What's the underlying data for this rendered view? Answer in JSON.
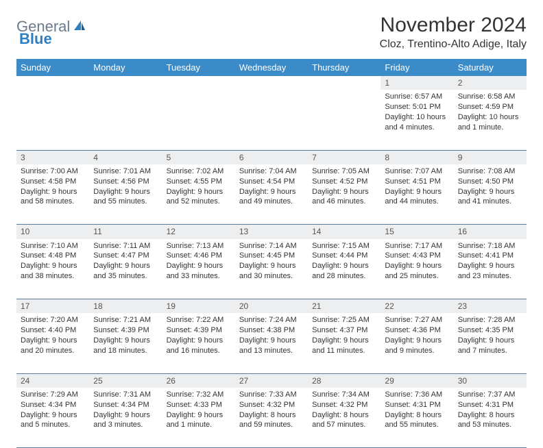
{
  "logo": {
    "general": "General",
    "blue": "Blue"
  },
  "title": "November 2024",
  "location": "Cloz, Trentino-Alto Adige, Italy",
  "colors": {
    "header_bg": "#3b8bc9",
    "header_text": "#ffffff",
    "daynum_bg": "#eceeef",
    "border": "#5a7ba0",
    "logo_general": "#6b7b8c",
    "logo_blue": "#2d7fc4"
  },
  "weekdays": [
    "Sunday",
    "Monday",
    "Tuesday",
    "Wednesday",
    "Thursday",
    "Friday",
    "Saturday"
  ],
  "weeks": [
    [
      null,
      null,
      null,
      null,
      null,
      {
        "n": "1",
        "sr": "Sunrise: 6:57 AM",
        "ss": "Sunset: 5:01 PM",
        "dl": "Daylight: 10 hours and 4 minutes."
      },
      {
        "n": "2",
        "sr": "Sunrise: 6:58 AM",
        "ss": "Sunset: 4:59 PM",
        "dl": "Daylight: 10 hours and 1 minute."
      }
    ],
    [
      {
        "n": "3",
        "sr": "Sunrise: 7:00 AM",
        "ss": "Sunset: 4:58 PM",
        "dl": "Daylight: 9 hours and 58 minutes."
      },
      {
        "n": "4",
        "sr": "Sunrise: 7:01 AM",
        "ss": "Sunset: 4:56 PM",
        "dl": "Daylight: 9 hours and 55 minutes."
      },
      {
        "n": "5",
        "sr": "Sunrise: 7:02 AM",
        "ss": "Sunset: 4:55 PM",
        "dl": "Daylight: 9 hours and 52 minutes."
      },
      {
        "n": "6",
        "sr": "Sunrise: 7:04 AM",
        "ss": "Sunset: 4:54 PM",
        "dl": "Daylight: 9 hours and 49 minutes."
      },
      {
        "n": "7",
        "sr": "Sunrise: 7:05 AM",
        "ss": "Sunset: 4:52 PM",
        "dl": "Daylight: 9 hours and 46 minutes."
      },
      {
        "n": "8",
        "sr": "Sunrise: 7:07 AM",
        "ss": "Sunset: 4:51 PM",
        "dl": "Daylight: 9 hours and 44 minutes."
      },
      {
        "n": "9",
        "sr": "Sunrise: 7:08 AM",
        "ss": "Sunset: 4:50 PM",
        "dl": "Daylight: 9 hours and 41 minutes."
      }
    ],
    [
      {
        "n": "10",
        "sr": "Sunrise: 7:10 AM",
        "ss": "Sunset: 4:48 PM",
        "dl": "Daylight: 9 hours and 38 minutes."
      },
      {
        "n": "11",
        "sr": "Sunrise: 7:11 AM",
        "ss": "Sunset: 4:47 PM",
        "dl": "Daylight: 9 hours and 35 minutes."
      },
      {
        "n": "12",
        "sr": "Sunrise: 7:13 AM",
        "ss": "Sunset: 4:46 PM",
        "dl": "Daylight: 9 hours and 33 minutes."
      },
      {
        "n": "13",
        "sr": "Sunrise: 7:14 AM",
        "ss": "Sunset: 4:45 PM",
        "dl": "Daylight: 9 hours and 30 minutes."
      },
      {
        "n": "14",
        "sr": "Sunrise: 7:15 AM",
        "ss": "Sunset: 4:44 PM",
        "dl": "Daylight: 9 hours and 28 minutes."
      },
      {
        "n": "15",
        "sr": "Sunrise: 7:17 AM",
        "ss": "Sunset: 4:43 PM",
        "dl": "Daylight: 9 hours and 25 minutes."
      },
      {
        "n": "16",
        "sr": "Sunrise: 7:18 AM",
        "ss": "Sunset: 4:41 PM",
        "dl": "Daylight: 9 hours and 23 minutes."
      }
    ],
    [
      {
        "n": "17",
        "sr": "Sunrise: 7:20 AM",
        "ss": "Sunset: 4:40 PM",
        "dl": "Daylight: 9 hours and 20 minutes."
      },
      {
        "n": "18",
        "sr": "Sunrise: 7:21 AM",
        "ss": "Sunset: 4:39 PM",
        "dl": "Daylight: 9 hours and 18 minutes."
      },
      {
        "n": "19",
        "sr": "Sunrise: 7:22 AM",
        "ss": "Sunset: 4:39 PM",
        "dl": "Daylight: 9 hours and 16 minutes."
      },
      {
        "n": "20",
        "sr": "Sunrise: 7:24 AM",
        "ss": "Sunset: 4:38 PM",
        "dl": "Daylight: 9 hours and 13 minutes."
      },
      {
        "n": "21",
        "sr": "Sunrise: 7:25 AM",
        "ss": "Sunset: 4:37 PM",
        "dl": "Daylight: 9 hours and 11 minutes."
      },
      {
        "n": "22",
        "sr": "Sunrise: 7:27 AM",
        "ss": "Sunset: 4:36 PM",
        "dl": "Daylight: 9 hours and 9 minutes."
      },
      {
        "n": "23",
        "sr": "Sunrise: 7:28 AM",
        "ss": "Sunset: 4:35 PM",
        "dl": "Daylight: 9 hours and 7 minutes."
      }
    ],
    [
      {
        "n": "24",
        "sr": "Sunrise: 7:29 AM",
        "ss": "Sunset: 4:34 PM",
        "dl": "Daylight: 9 hours and 5 minutes."
      },
      {
        "n": "25",
        "sr": "Sunrise: 7:31 AM",
        "ss": "Sunset: 4:34 PM",
        "dl": "Daylight: 9 hours and 3 minutes."
      },
      {
        "n": "26",
        "sr": "Sunrise: 7:32 AM",
        "ss": "Sunset: 4:33 PM",
        "dl": "Daylight: 9 hours and 1 minute."
      },
      {
        "n": "27",
        "sr": "Sunrise: 7:33 AM",
        "ss": "Sunset: 4:32 PM",
        "dl": "Daylight: 8 hours and 59 minutes."
      },
      {
        "n": "28",
        "sr": "Sunrise: 7:34 AM",
        "ss": "Sunset: 4:32 PM",
        "dl": "Daylight: 8 hours and 57 minutes."
      },
      {
        "n": "29",
        "sr": "Sunrise: 7:36 AM",
        "ss": "Sunset: 4:31 PM",
        "dl": "Daylight: 8 hours and 55 minutes."
      },
      {
        "n": "30",
        "sr": "Sunrise: 7:37 AM",
        "ss": "Sunset: 4:31 PM",
        "dl": "Daylight: 8 hours and 53 minutes."
      }
    ]
  ]
}
